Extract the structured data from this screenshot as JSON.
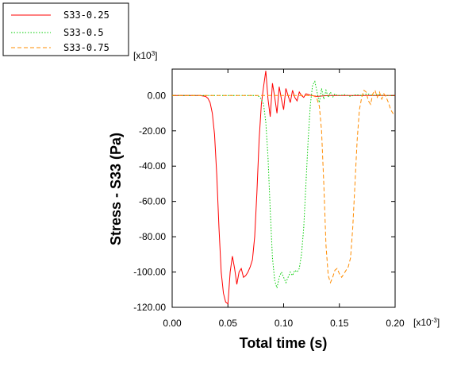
{
  "chart_data": {
    "type": "line",
    "title": "",
    "xlabel": "Total time (s)",
    "ylabel": "Stress - S33 (Pa)",
    "x_multiplier": "[x10-3]",
    "y_multiplier": "[x103]",
    "x_multiplier_parts": {
      "prefix": "[x10",
      "exp": "-3",
      "suffix": "]"
    },
    "y_multiplier_parts": {
      "prefix": "[x10",
      "exp": "3",
      "suffix": "]"
    },
    "xlim": [
      0,
      0.2
    ],
    "ylim": [
      -120,
      15
    ],
    "grid": false,
    "legend_position": "top-left",
    "x_ticks": [
      "0.00",
      "0.05",
      "0.10",
      "0.15",
      "0.20"
    ],
    "y_ticks": [
      "0.00",
      "-20.00",
      "-40.00",
      "-60.00",
      "-80.00",
      "-100.00",
      "-120.00"
    ],
    "x_tick_values": [
      0,
      0.05,
      0.1,
      0.15,
      0.2
    ],
    "y_tick_values": [
      0,
      -20,
      -40,
      -60,
      -80,
      -100,
      -120
    ],
    "series": [
      {
        "name": "S33-0.25",
        "color": "#ff0000",
        "dash": "solid",
        "x": [
          0,
          0.025,
          0.03,
          0.032,
          0.034,
          0.036,
          0.038,
          0.04,
          0.042,
          0.044,
          0.046,
          0.048,
          0.05,
          0.052,
          0.054,
          0.056,
          0.058,
          0.06,
          0.062,
          0.064,
          0.066,
          0.068,
          0.07,
          0.072,
          0.074,
          0.076,
          0.078,
          0.08,
          0.082,
          0.084,
          0.086,
          0.088,
          0.09,
          0.092,
          0.094,
          0.096,
          0.098,
          0.1,
          0.102,
          0.104,
          0.106,
          0.108,
          0.11,
          0.112,
          0.114,
          0.116,
          0.118,
          0.12,
          0.125,
          0.13,
          0.14,
          0.15,
          0.16,
          0.17,
          0.18,
          0.19,
          0.2
        ],
        "y": [
          0,
          0,
          -0.5,
          -1.5,
          -4,
          -10,
          -22,
          -45,
          -75,
          -100,
          -112,
          -117,
          -118,
          -100,
          -91,
          -98,
          -107,
          -100,
          -98,
          -103,
          -102,
          -100,
          -97,
          -93,
          -80,
          -55,
          -25,
          -5,
          5,
          14,
          -2,
          -12,
          7,
          -1,
          -10,
          5,
          -2,
          -8,
          4,
          0,
          -4,
          3,
          -1,
          -3,
          2,
          0,
          -1,
          1,
          0,
          -0.5,
          0,
          0,
          0,
          0,
          0,
          0,
          0
        ]
      },
      {
        "name": "S33-0.5",
        "color": "#00cc00",
        "dash": "dotted",
        "x": [
          0,
          0.075,
          0.078,
          0.08,
          0.082,
          0.084,
          0.086,
          0.088,
          0.09,
          0.092,
          0.094,
          0.096,
          0.098,
          0.1,
          0.102,
          0.104,
          0.106,
          0.108,
          0.11,
          0.112,
          0.114,
          0.116,
          0.118,
          0.12,
          0.122,
          0.124,
          0.126,
          0.128,
          0.13,
          0.132,
          0.134,
          0.136,
          0.138,
          0.14,
          0.142,
          0.144,
          0.146,
          0.148,
          0.15,
          0.155,
          0.16,
          0.165,
          0.17,
          0.175,
          0.18,
          0.185,
          0.19,
          0.2
        ],
        "y": [
          0,
          0,
          -0.5,
          -2,
          -5,
          -15,
          -35,
          -65,
          -92,
          -105,
          -109,
          -103,
          -100,
          -103,
          -106,
          -103,
          -100,
          -102,
          -99,
          -100,
          -98,
          -90,
          -75,
          -50,
          -25,
          -5,
          6,
          8,
          2,
          -4,
          4,
          -2,
          3,
          -1,
          2,
          -1,
          1,
          0,
          0,
          0.5,
          -0.5,
          0.5,
          0,
          1,
          0,
          0.5,
          0,
          0
        ]
      },
      {
        "name": "S33-0.75",
        "color": "#ff8c00",
        "dash": "dashed",
        "x": [
          0,
          0.126,
          0.128,
          0.13,
          0.132,
          0.134,
          0.136,
          0.138,
          0.14,
          0.142,
          0.144,
          0.146,
          0.148,
          0.15,
          0.152,
          0.154,
          0.156,
          0.158,
          0.16,
          0.162,
          0.164,
          0.166,
          0.168,
          0.17,
          0.172,
          0.174,
          0.176,
          0.178,
          0.18,
          0.182,
          0.184,
          0.186,
          0.188,
          0.19,
          0.192,
          0.194,
          0.196,
          0.198,
          0.2
        ],
        "y": [
          0,
          0,
          -0.5,
          -2,
          -6,
          -20,
          -50,
          -85,
          -102,
          -106,
          -103,
          -99,
          -98,
          -101,
          -103,
          -101,
          -99,
          -97,
          -92,
          -75,
          -50,
          -25,
          -8,
          -1,
          3,
          2,
          -3,
          -5,
          1,
          3,
          -1,
          2,
          -2,
          1,
          -1,
          -4,
          -8,
          -10,
          -11
        ]
      }
    ]
  }
}
